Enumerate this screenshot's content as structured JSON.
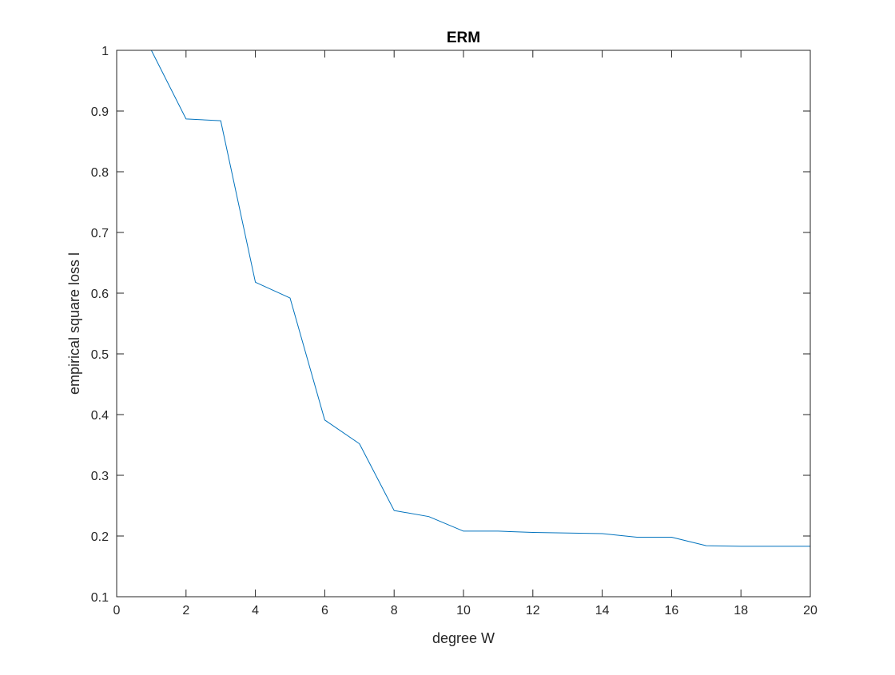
{
  "chart_data": {
    "type": "line",
    "title": "ERM",
    "xlabel": "degree W",
    "ylabel": "empirical square loss l",
    "xlim": [
      0,
      20
    ],
    "ylim": [
      0.1,
      1
    ],
    "grid": false,
    "x_ticks": [
      "0",
      "2",
      "4",
      "6",
      "8",
      "10",
      "12",
      "14",
      "16",
      "18",
      "20"
    ],
    "y_ticks": [
      "0.1",
      "0.2",
      "0.3",
      "0.4",
      "0.5",
      "0.6",
      "0.7",
      "0.8",
      "0.9",
      "1"
    ],
    "series": [
      {
        "color": "#0072BD",
        "x": [
          1,
          2,
          3,
          4,
          5,
          6,
          7,
          8,
          9,
          10,
          11,
          12,
          13,
          14,
          15,
          16,
          17,
          18,
          19,
          20
        ],
        "y": [
          1.0,
          0.887,
          0.884,
          0.618,
          0.592,
          0.391,
          0.352,
          0.242,
          0.232,
          0.208,
          0.208,
          0.206,
          0.205,
          0.204,
          0.198,
          0.198,
          0.184,
          0.183,
          0.183,
          0.183
        ]
      }
    ]
  }
}
